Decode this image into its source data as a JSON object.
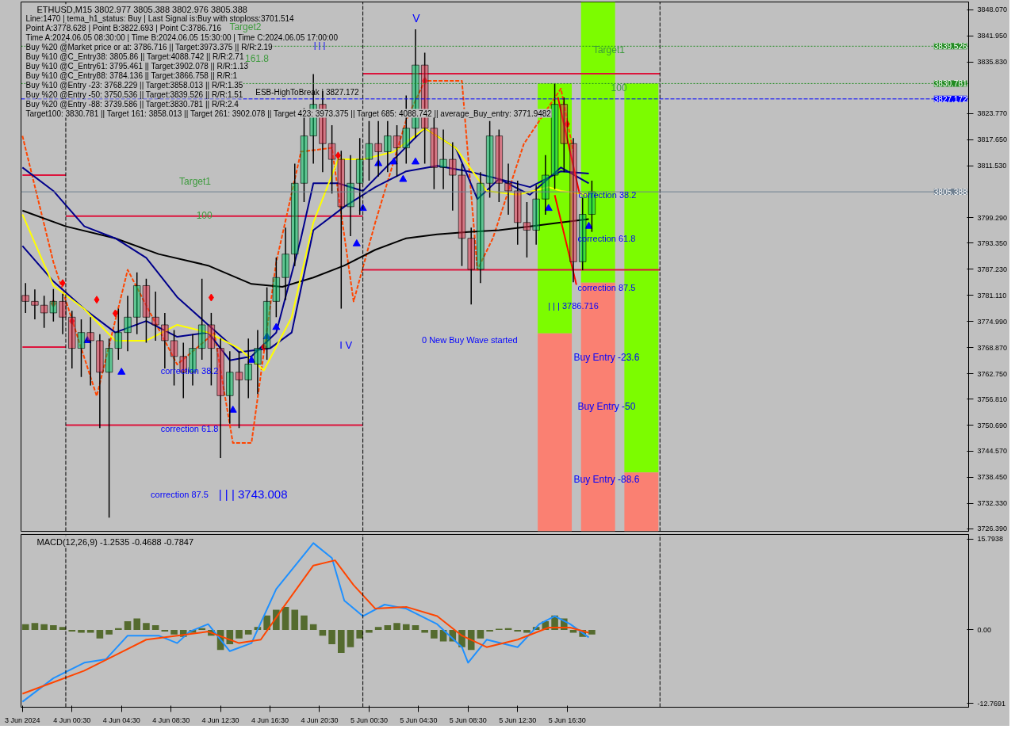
{
  "chart_data": [
    {
      "type": "candlestick",
      "title": "ETHUSD,M15  3802.977 3805.388 3802.976 3805.388",
      "annotations": [
        "Line:1470 | tema_h1_status: Buy | Last Signal is:Buy with stoploss:3701.514",
        "Point A:3778.628 | Point B:3822.693 | Point C:3786.716",
        "Time A:2024.06.05 08:30:00 | Time B:2024.06.05 15:30:00 | Time C:2024.06.05 17:00:00",
        "Buy %20 @Market price or at: 3786.716 || Target:3973.375 || R/R:2.19",
        "Buy %10 @C_Entry38: 3805.86 || Target:4088.742 || R/R:2.71",
        "Buy %10 @C_Entry61: 3795.461 || Target:3902.078 || R/R:1.13",
        "Buy %10 @C_Entry88: 3784.136 || Target:3866.758 || R/R:1",
        "Buy %10 @Entry -23: 3768.229 || Target:3858.013 || R/R:1.35",
        "Buy %20 @Entry -50: 3750.536 || Target:3839.526 || R/R:1.51",
        "Buy %20 @Entry -88: 3739.586 || Target:3830.781 || R/R:2.4",
        "Target100: 3830.781 || Target 161: 3858.013 || Target 261: 3902.078 || Target 423: 3973.375 || Target 685: 4088.742 || average_Buy_entry: 3771.9482",
        "Target2",
        "161.8",
        "V",
        "ESB-HighToBreak | 3827.172",
        "Target1",
        "100",
        "I V",
        "correction 87.5",
        "| | | 3743.008",
        "0 New Buy Wave started",
        "Target1",
        "100",
        "correction 61.8",
        "correction 87.5",
        "Buy Entry -23.6",
        "Buy Entry -50",
        "Buy Entry -88.6",
        {
          "text": "| | |",
          "x": "2024-06-04T20:30",
          "y": 3839.7
        },
        {
          "text": "correction 38.2",
          "x": "2024-06-04T10:00",
          "y": 3763.4
        },
        {
          "text": "correction 61.8",
          "x": "2024-06-04T10:00",
          "y": 3749.8
        },
        {
          "text": "correction 38.2",
          "x": "2024-06-05T19:45",
          "y": 3804.7
        },
        {
          "text": "| | | 3786.716",
          "x": "2024-06-05T17:00",
          "y": 3778.6
        }
      ],
      "x": [
        "2024-06-03T20:45",
        "2024-06-03T21:30",
        "2024-06-03T22:15",
        "2024-06-03T23:00",
        "2024-06-03T23:45",
        "2024-06-04T00:30",
        "2024-06-04T01:15",
        "2024-06-04T02:00",
        "2024-06-04T02:45",
        "2024-06-04T03:30",
        "2024-06-04T04:15",
        "2024-06-04T05:00",
        "2024-06-04T05:45",
        "2024-06-04T06:30",
        "2024-06-04T07:15",
        "2024-06-04T08:00",
        "2024-06-04T08:45",
        "2024-06-04T09:30",
        "2024-06-04T10:15",
        "2024-06-04T11:00",
        "2024-06-04T11:45",
        "2024-06-04T12:30",
        "2024-06-04T13:15",
        "2024-06-04T14:00",
        "2024-06-04T14:45",
        "2024-06-04T15:30",
        "2024-06-04T16:15",
        "2024-06-04T17:00",
        "2024-06-04T17:45",
        "2024-06-04T18:30",
        "2024-06-04T19:15",
        "2024-06-04T20:00",
        "2024-06-04T20:45",
        "2024-06-04T21:30",
        "2024-06-04T22:15",
        "2024-06-04T23:00",
        "2024-06-04T23:45",
        "2024-06-05T00:30",
        "2024-06-05T01:15",
        "2024-06-05T02:00",
        "2024-06-05T02:45",
        "2024-06-05T03:30",
        "2024-06-05T04:15",
        "2024-06-05T05:00",
        "2024-06-05T05:45",
        "2024-06-05T06:30",
        "2024-06-05T07:15",
        "2024-06-05T08:00",
        "2024-06-05T08:45",
        "2024-06-05T09:30",
        "2024-06-05T10:15",
        "2024-06-05T11:00",
        "2024-06-05T11:45",
        "2024-06-05T12:30",
        "2024-06-05T13:15",
        "2024-06-05T14:00",
        "2024-06-05T14:45",
        "2024-06-05T15:30",
        "2024-06-05T16:15",
        "2024-06-05T17:00",
        "2024-06-05T17:45",
        "2024-06-05T18:30"
      ],
      "ohlc": [
        [
          3781.1,
          3784.0,
          3777.0,
          3779.7
        ],
        [
          3779.7,
          3782.5,
          3775.5,
          3778.8
        ],
        [
          3778.8,
          3781.0,
          3773.5,
          3777.0
        ],
        [
          3777.0,
          3782.6,
          3775.0,
          3779.7
        ],
        [
          3779.7,
          3781.5,
          3772.0,
          3776.0
        ],
        [
          3776.0,
          3777.5,
          3764.0,
          3768.7
        ],
        [
          3768.7,
          3775.5,
          3762.0,
          3772.4
        ],
        [
          3772.4,
          3776.0,
          3760.0,
          3770.5
        ],
        [
          3770.5,
          3772.0,
          3750.0,
          3763.1
        ],
        [
          3763.1,
          3771.0,
          3729.0,
          3768.7
        ],
        [
          3768.7,
          3778.0,
          3766.0,
          3772.4
        ],
        [
          3772.4,
          3781.0,
          3768.0,
          3776.0
        ],
        [
          3776.0,
          3786.5,
          3772.0,
          3783.4
        ],
        [
          3783.4,
          3785.0,
          3770.0,
          3776.0
        ],
        [
          3776.0,
          3782.0,
          3770.5,
          3774.2
        ],
        [
          3774.2,
          3777.0,
          3764.0,
          3770.5
        ],
        [
          3770.5,
          3773.0,
          3760.0,
          3766.8
        ],
        [
          3766.8,
          3770.0,
          3757.0,
          3763.1
        ],
        [
          3763.1,
          3772.0,
          3760.0,
          3768.7
        ],
        [
          3768.7,
          3785.0,
          3766.0,
          3774.2
        ],
        [
          3774.2,
          3777.0,
          3760.0,
          3768.7
        ],
        [
          3768.7,
          3771.0,
          3743.0,
          3757.6
        ],
        [
          3757.6,
          3768.0,
          3751.0,
          3763.1
        ],
        [
          3763.1,
          3768.0,
          3750.0,
          3761.3
        ],
        [
          3761.3,
          3771.0,
          3757.0,
          3765.0
        ],
        [
          3765.0,
          3773.0,
          3758.0,
          3768.7
        ],
        [
          3768.7,
          3783.0,
          3766.0,
          3779.7
        ],
        [
          3779.7,
          3790.0,
          3776.0,
          3785.3
        ],
        [
          3785.3,
          3797.0,
          3780.0,
          3790.8
        ],
        [
          3790.8,
          3812.0,
          3788.0,
          3807.4
        ],
        [
          3807.4,
          3825.0,
          3803.0,
          3818.5
        ],
        [
          3818.5,
          3833.0,
          3812.0,
          3825.9
        ],
        [
          3825.9,
          3829.0,
          3810.0,
          3816.7
        ],
        [
          3816.7,
          3821.0,
          3805.0,
          3813.0
        ],
        [
          3813.0,
          3815.0,
          3778.0,
          3801.9
        ],
        [
          3801.9,
          3814.0,
          3795.0,
          3807.4
        ],
        [
          3807.4,
          3818.0,
          3800.0,
          3813.0
        ],
        [
          3813.0,
          3822.0,
          3808.0,
          3816.7
        ],
        [
          3816.7,
          3822.0,
          3809.0,
          3814.8
        ],
        [
          3814.8,
          3822.0,
          3810.0,
          3818.5
        ],
        [
          3818.5,
          3821.0,
          3809.0,
          3815.7
        ],
        [
          3815.7,
          3828.0,
          3812.0,
          3820.3
        ],
        [
          3820.3,
          3843.5,
          3818.0,
          3835.1
        ],
        [
          3835.1,
          3838.0,
          3812.0,
          3820.3
        ],
        [
          3820.3,
          3823.0,
          3806.0,
          3811.1
        ],
        [
          3811.1,
          3820.0,
          3806.0,
          3813.0
        ],
        [
          3813.0,
          3817.0,
          3801.0,
          3809.3
        ],
        [
          3809.3,
          3812.0,
          3788.0,
          3794.5
        ],
        [
          3794.5,
          3797.0,
          3779.0,
          3787.2
        ],
        [
          3787.2,
          3810.0,
          3784.0,
          3807.4
        ],
        [
          3807.4,
          3822.0,
          3804.0,
          3818.5
        ],
        [
          3818.5,
          3820.0,
          3803.0,
          3807.4
        ],
        [
          3807.4,
          3812.0,
          3800.0,
          3805.6
        ],
        [
          3805.6,
          3808.0,
          3793.0,
          3798.2
        ],
        [
          3798.2,
          3803.0,
          3790.0,
          3796.4
        ],
        [
          3796.4,
          3807.0,
          3793.0,
          3803.7
        ],
        [
          3803.7,
          3814.0,
          3800.0,
          3809.3
        ],
        [
          3809.3,
          3830.8,
          3806.0,
          3825.9
        ],
        [
          3825.9,
          3827.5,
          3810.0,
          3816.7
        ],
        [
          3816.7,
          3818.0,
          3784.2,
          3789.0
        ],
        [
          3789.0,
          3804.0,
          3787.0,
          3800.1
        ],
        [
          3800.1,
          3808.0,
          3796.0,
          3805.388
        ]
      ],
      "series": [
        {
          "type": "bar",
          "color": "#7cfc00",
          "x": [
            "2024-06-05T15:30",
            "2024-06-05T19:00",
            "2024-06-05T22:30"
          ],
          "base": [
            3772.2,
            3784.1,
            3739.6
          ],
          "values": [
            58.6,
            65.8,
            91.2
          ]
        },
        {
          "type": "bar",
          "color": "#fa8072",
          "x": [
            "2024-06-05T15:30",
            "2024-06-05T19:00",
            "2024-06-05T22:30"
          ],
          "base": [
            3725.8,
            3725.8,
            3725.8
          ],
          "values": [
            46.4,
            58.3,
            13.8
          ]
        },
        {
          "type": "line",
          "color": "#dc143c",
          "x": [
            "2024-06-05T00:00",
            "2024-06-06T00:00"
          ],
          "values": [
            3833.1,
            3833.1
          ]
        },
        {
          "type": "line",
          "color": "#dc143c",
          "x": [
            "2024-06-03T20:30",
            "2024-06-04T00:00"
          ],
          "values": [
            3809.3,
            3809.3
          ]
        },
        {
          "type": "line",
          "color": "#dc143c",
          "x": [
            "2024-06-04T00:00",
            "2024-06-05T00:00"
          ],
          "values": [
            3799.7,
            3799.7
          ]
        },
        {
          "type": "line",
          "color": "#dc143c",
          "x": [
            "2024-06-05T00:00",
            "2024-06-06T00:00"
          ],
          "values": [
            3787.1,
            3787.1
          ]
        },
        {
          "type": "line",
          "color": "#dc143c",
          "x": [
            "2024-06-03T20:30",
            "2024-06-04T00:00"
          ],
          "values": [
            3769.0,
            3769.0
          ]
        },
        {
          "type": "line",
          "color": "#dc143c",
          "x": [
            "2024-06-04T00:00",
            "2024-06-05T00:00"
          ],
          "values": [
            3750.7,
            3750.7
          ]
        },
        {
          "type": "line",
          "color": "#ff4500",
          "line_style": "dashed",
          "x": [
            "2024-06-03T20:30",
            "2024-06-03T23:00",
            "2024-06-04T02:30",
            "2024-06-04T05:00",
            "2024-06-04T09:00",
            "2024-06-04T12:00",
            "2024-06-04T13:30",
            "2024-06-04T15:00",
            "2024-06-04T17:00",
            "2024-06-04T19:00",
            "2024-06-04T21:30",
            "2024-06-04T23:15",
            "2024-06-05T01:00",
            "2024-06-05T03:30",
            "2024-06-05T05:00",
            "2024-06-05T08:00",
            "2024-06-05T09:15",
            "2024-06-05T10:30",
            "2024-06-05T13:00",
            "2024-06-05T16:00",
            "2024-06-05T17:00"
          ],
          "values": [
            3818.5,
            3788.9,
            3757.5,
            3787.1,
            3764.9,
            3772.3,
            3746.5,
            3746.5,
            3788.9,
            3814.8,
            3815.7,
            3779.7,
            3798.2,
            3822.2,
            3831.4,
            3831.4,
            3787.1,
            3794.5,
            3816.6,
            3829.6,
            3814.8
          ]
        },
        {
          "type": "line",
          "color": "#000000",
          "x": [
            "2024-06-03T20:30",
            "2024-06-04T00:00",
            "2024-06-04T04:00",
            "2024-06-04T07:30",
            "2024-06-04T11:30",
            "2024-06-04T15:00",
            "2024-06-04T17:30",
            "2024-06-04T20:00",
            "2024-06-04T22:30",
            "2024-06-05T01:00",
            "2024-06-05T03:30",
            "2024-06-05T06:00",
            "2024-06-05T08:30",
            "2024-06-05T11:00",
            "2024-06-05T13:30",
            "2024-06-05T16:00",
            "2024-06-05T18:15"
          ],
          "values": [
            3801.0,
            3797.3,
            3794.5,
            3790.8,
            3788.1,
            3783.8,
            3783.1,
            3785.3,
            3788.1,
            3791.8,
            3794.5,
            3795.4,
            3796.0,
            3796.4,
            3797.3,
            3798.2,
            3799.0
          ]
        },
        {
          "type": "line",
          "color": "#00008b",
          "x": [
            "2024-06-03T20:30",
            "2024-06-03T23:00",
            "2024-06-04T01:30",
            "2024-06-04T04:00",
            "2024-06-04T06:30",
            "2024-06-04T09:00",
            "2024-06-04T11:30",
            "2024-06-04T14:00",
            "2024-06-04T16:30",
            "2024-06-04T18:15",
            "2024-06-04T20:00",
            "2024-06-04T22:30",
            "2024-06-05T01:00",
            "2024-06-05T03:30",
            "2024-06-05T06:00",
            "2024-06-05T08:30",
            "2024-06-05T11:00",
            "2024-06-05T13:30",
            "2024-06-05T16:00",
            "2024-06-05T18:15"
          ],
          "values": [
            3811.1,
            3805.6,
            3797.3,
            3794.5,
            3789.9,
            3780.7,
            3774.2,
            3767.8,
            3768.7,
            3772.4,
            3796.4,
            3801.9,
            3806.5,
            3810.2,
            3811.5,
            3810.2,
            3808.4,
            3806.5,
            3810.2,
            3809.7
          ]
        },
        {
          "type": "line",
          "color": "#00008b",
          "x": [
            "2024-06-03T20:30",
            "2024-06-03T23:00",
            "2024-06-04T01:30",
            "2024-06-04T04:00",
            "2024-06-04T06:30",
            "2024-06-04T09:00",
            "2024-06-04T11:30",
            "2024-06-04T13:15",
            "2024-06-04T15:00",
            "2024-06-04T17:00",
            "2024-06-04T19:00",
            "2024-06-04T20:00",
            "2024-06-04T22:00",
            "2024-06-05T00:00",
            "2024-06-05T02:30",
            "2024-06-05T05:00",
            "2024-06-05T07:30",
            "2024-06-05T09:15",
            "2024-06-05T11:00",
            "2024-06-05T13:30",
            "2024-06-05T16:00",
            "2024-06-05T18:15"
          ],
          "values": [
            3792.7,
            3784.4,
            3777.9,
            3772.4,
            3775.1,
            3771.4,
            3772.4,
            3765.9,
            3766.8,
            3772.4,
            3794.5,
            3807.4,
            3807.4,
            3805.6,
            3813.0,
            3820.3,
            3815.7,
            3803.7,
            3808.4,
            3804.7,
            3811.1,
            3807.4
          ]
        },
        {
          "type": "line",
          "color": "#ffff00",
          "x": [
            "2024-06-03T20:30",
            "2024-06-03T23:00",
            "2024-06-04T01:30",
            "2024-06-04T04:00",
            "2024-06-04T06:30",
            "2024-06-04T09:00",
            "2024-06-04T11:30",
            "2024-06-04T14:00",
            "2024-06-04T16:00",
            "2024-06-04T18:15",
            "2024-06-04T20:00",
            "2024-06-04T22:00",
            "2024-06-05T00:00",
            "2024-06-05T02:30",
            "2024-06-05T05:00",
            "2024-06-05T07:30",
            "2024-06-05T10:00",
            "2024-06-05T12:30",
            "2024-06-05T15:00",
            "2024-06-05T16:00",
            "2024-06-05T18:15"
          ],
          "values": [
            3800.1,
            3783.4,
            3777.9,
            3770.5,
            3770.5,
            3774.2,
            3772.4,
            3768.7,
            3763.5,
            3776.0,
            3798.2,
            3813.0,
            3813.0,
            3814.8,
            3820.3,
            3815.7,
            3805.6,
            3804.7,
            3806.5,
            3805.6,
            3804.7
          ]
        },
        {
          "type": "line",
          "color": "#ff0000",
          "x": [
            "2024-06-05T15:45",
            "2024-06-05T17:30"
          ],
          "values": [
            3827.6,
            3805.0
          ]
        },
        {
          "type": "line",
          "color": "#ff0000",
          "x": [
            "2024-06-05T15:30",
            "2024-06-05T17:15"
          ],
          "values": [
            3804.6,
            3783.6
          ]
        },
        {
          "type": "scatter",
          "marker": "diamond",
          "color": "#ff0000",
          "x": [
            "2024-06-03T23:00",
            "2024-06-03T23:45",
            "2024-06-04T00:30",
            "2024-06-04T02:30",
            "2024-06-04T04:00",
            "2024-06-04T11:45",
            "2024-06-04T16:00",
            "2024-06-04T22:00",
            "2024-06-05T05:00",
            "2024-06-05T16:30"
          ],
          "values": [
            3779.2,
            3784.0,
            3775.1,
            3780.1,
            3776.9,
            3780.6,
            3769.0,
            3813.9,
            3831.4,
            3821.3
          ]
        },
        {
          "type": "scatter",
          "marker": "triangle",
          "color": "#0000ff",
          "x": [
            "2024-06-04T01:45",
            "2024-06-04T04:30",
            "2024-06-04T13:30",
            "2024-06-04T15:00",
            "2024-06-04T16:15",
            "2024-06-04T17:00",
            "2024-06-04T23:30",
            "2024-06-05T00:00",
            "2024-06-05T01:15",
            "2024-06-05T02:30",
            "2024-06-05T03:15",
            "2024-06-05T04:15",
            "2024-06-05T15:00",
            "2024-06-05T18:15"
          ],
          "values": [
            3770.5,
            3763.1,
            3754.2,
            3765.9,
            3771.4,
            3773.6,
            3793.2,
            3801.5,
            3812.0,
            3812.4,
            3808.3,
            3812.4,
            3801.5,
            3797.3
          ]
        }
      ],
      "ref_lines": [
        {
          "axis": "x",
          "value": "2024-06-04T00:00",
          "color": "#000000",
          "line_style": "dashed"
        },
        {
          "axis": "x",
          "value": "2024-06-05T00:00",
          "color": "#000000",
          "line_style": "dashed"
        },
        {
          "axis": "x",
          "value": "2024-06-06T00:00",
          "color": "#000000",
          "line_style": "dashed"
        },
        {
          "axis": "y",
          "value": 3839.526,
          "label": "3839.526",
          "color": "#228b22",
          "line_style": "dotted"
        },
        {
          "axis": "y",
          "value": 3830.781,
          "label": "3830.781",
          "color": "#228b22",
          "line_style": "dotted"
        },
        {
          "axis": "y",
          "value": 3827.172,
          "label": "3827.172",
          "color": "#0000ff",
          "line_style": "dashed"
        },
        {
          "axis": "y",
          "value": 3805.388,
          "label": "3805.388",
          "color": "#708090",
          "line_style": "solid"
        }
      ],
      "xlim": [
        "2024-06-03T20:23",
        "2024-06-07T00:56"
      ],
      "ylim": [
        3725.8,
        3849.9
      ],
      "yticks": [
        {
          "value": 3848.07,
          "label": "3848.070"
        },
        {
          "value": 3841.95,
          "label": "3841.950"
        },
        {
          "value": 3835.83,
          "label": "3835.830"
        },
        {
          "value": 3823.77,
          "label": "3823.770"
        },
        {
          "value": 3817.65,
          "label": "3817.650"
        },
        {
          "value": 3811.53,
          "label": "3811.530"
        },
        {
          "value": 3799.29,
          "label": "3799.290"
        },
        {
          "value": 3793.35,
          "label": "3793.350"
        },
        {
          "value": 3787.23,
          "label": "3787.230"
        },
        {
          "value": 3781.11,
          "label": "3781.110"
        },
        {
          "value": 3774.99,
          "label": "3774.990"
        },
        {
          "value": 3768.87,
          "label": "3768.870"
        },
        {
          "value": 3762.75,
          "label": "3762.750"
        },
        {
          "value": 3756.81,
          "label": "3756.810"
        },
        {
          "value": 3750.69,
          "label": "3750.690"
        },
        {
          "value": 3744.57,
          "label": "3744.570"
        },
        {
          "value": 3738.45,
          "label": "3738.450"
        },
        {
          "value": 3732.33,
          "label": "3732.330"
        },
        {
          "value": 3726.39,
          "label": "3726.390"
        }
      ],
      "tick_labels": "y"
    },
    {
      "type": "bar",
      "title": "MACD(12,26,9) -1.2535 -0.4688 -0.7847",
      "color": "#556b2f",
      "x": [
        "2024-06-03T20:45",
        "2024-06-03T21:30",
        "2024-06-03T22:15",
        "2024-06-03T23:00",
        "2024-06-03T23:45",
        "2024-06-04T00:30",
        "2024-06-04T01:15",
        "2024-06-04T02:00",
        "2024-06-04T02:45",
        "2024-06-04T03:30",
        "2024-06-04T04:15",
        "2024-06-04T05:00",
        "2024-06-04T05:45",
        "2024-06-04T06:30",
        "2024-06-04T07:15",
        "2024-06-04T08:00",
        "2024-06-04T08:45",
        "2024-06-04T09:30",
        "2024-06-04T10:15",
        "2024-06-04T11:00",
        "2024-06-04T11:45",
        "2024-06-04T12:30",
        "2024-06-04T13:15",
        "2024-06-04T14:00",
        "2024-06-04T14:45",
        "2024-06-04T15:30",
        "2024-06-04T16:15",
        "2024-06-04T17:00",
        "2024-06-04T17:45",
        "2024-06-04T18:30",
        "2024-06-04T19:15",
        "2024-06-04T20:00",
        "2024-06-04T20:45",
        "2024-06-04T21:30",
        "2024-06-04T22:15",
        "2024-06-04T23:00",
        "2024-06-04T23:45",
        "2024-06-05T00:30",
        "2024-06-05T01:15",
        "2024-06-05T02:00",
        "2024-06-05T02:45",
        "2024-06-05T03:30",
        "2024-06-05T04:15",
        "2024-06-05T05:00",
        "2024-06-05T05:45",
        "2024-06-05T06:30",
        "2024-06-05T07:15",
        "2024-06-05T08:00",
        "2024-06-05T08:45",
        "2024-06-05T09:30",
        "2024-06-05T10:15",
        "2024-06-05T11:00",
        "2024-06-05T11:45",
        "2024-06-05T12:30",
        "2024-06-05T13:15",
        "2024-06-05T14:00",
        "2024-06-05T14:45",
        "2024-06-05T15:30",
        "2024-06-05T16:15",
        "2024-06-05T17:00",
        "2024-06-05T17:45",
        "2024-06-05T18:30"
      ],
      "values": [
        1.0,
        1.2,
        1.0,
        0.8,
        0.5,
        -0.3,
        -0.5,
        -0.5,
        -1.5,
        -0.8,
        0.3,
        1.5,
        2.0,
        1.2,
        0.8,
        -0.3,
        -0.8,
        -1.2,
        -0.5,
        0.3,
        -1.0,
        -3.5,
        -2.5,
        -1.5,
        -0.8,
        0.5,
        2.5,
        3.5,
        4.0,
        3.5,
        2.5,
        1.0,
        -1.0,
        -2.5,
        -4.0,
        -3.0,
        -1.5,
        -0.5,
        0.5,
        0.8,
        1.2,
        1.0,
        0.8,
        -0.5,
        -1.5,
        -2.0,
        -2.0,
        -3.0,
        -3.5,
        -1.5,
        -0.3,
        0.2,
        0.3,
        -0.3,
        -0.5,
        0.5,
        1.5,
        2.5,
        2.0,
        -0.5,
        -1.2,
        -0.8
      ],
      "series": [
        {
          "type": "line",
          "color": "#1e90ff",
          "x": [
            "2024-06-03T20:30",
            "2024-06-03T23:00",
            "2024-06-04T01:30",
            "2024-06-04T03:15",
            "2024-06-04T05:00",
            "2024-06-04T07:30",
            "2024-06-04T09:00",
            "2024-06-04T10:00",
            "2024-06-04T11:30",
            "2024-06-04T13:15",
            "2024-06-04T15:00",
            "2024-06-04T17:00",
            "2024-06-04T20:00",
            "2024-06-04T21:30",
            "2024-06-04T22:30",
            "2024-06-05T00:00",
            "2024-06-05T01:45",
            "2024-06-05T03:30",
            "2024-06-05T06:00",
            "2024-06-05T08:00",
            "2024-06-05T08:30",
            "2024-06-05T10:00",
            "2024-06-05T12:30",
            "2024-06-05T14:15",
            "2024-06-05T15:30",
            "2024-06-05T16:45",
            "2024-06-05T18:15"
          ],
          "values": [
            -12.5,
            -8.4,
            -5.7,
            -5.1,
            -1.0,
            -1.0,
            -2.3,
            -0.3,
            1.0,
            -3.7,
            -2.3,
            7.1,
            15.1,
            12.5,
            5.1,
            2.4,
            4.4,
            3.7,
            1.0,
            -3.0,
            -5.7,
            -1.7,
            -3.0,
            1.0,
            2.4,
            1.0,
            -1.3
          ]
        },
        {
          "type": "line",
          "color": "#ff4500",
          "x": [
            "2024-06-03T20:30",
            "2024-06-03T23:00",
            "2024-06-04T01:30",
            "2024-06-04T04:00",
            "2024-06-04T06:30",
            "2024-06-04T09:00",
            "2024-06-04T11:30",
            "2024-06-04T14:00",
            "2024-06-04T15:45",
            "2024-06-04T17:30",
            "2024-06-04T20:00",
            "2024-06-04T21:45",
            "2024-06-04T23:15",
            "2024-06-05T01:00",
            "2024-06-05T03:30",
            "2024-06-05T06:00",
            "2024-06-05T08:00",
            "2024-06-05T10:00",
            "2024-06-05T12:30",
            "2024-06-05T15:00",
            "2024-06-05T16:45",
            "2024-06-05T18:15"
          ],
          "values": [
            -11.1,
            -9.1,
            -7.1,
            -4.4,
            -1.7,
            -1.0,
            -0.3,
            -2.3,
            -1.7,
            3.7,
            11.2,
            12.1,
            7.8,
            3.7,
            4.0,
            2.4,
            -1.0,
            -3.0,
            -1.7,
            0.4,
            0.4,
            -0.5
          ]
        }
      ],
      "ref_lines": [
        {
          "axis": "x",
          "value": "2024-06-04T00:00",
          "color": "#000000",
          "line_style": "dashed"
        },
        {
          "axis": "x",
          "value": "2024-06-05T00:00",
          "color": "#000000",
          "line_style": "dashed"
        },
        {
          "axis": "x",
          "value": "2024-06-06T00:00",
          "color": "#000000",
          "line_style": "dashed"
        }
      ],
      "xlim": [
        "2024-06-03T20:23",
        "2024-06-07T00:56"
      ],
      "xticks": [
        {
          "value": "2024-06-03T20:30",
          "label": "3 Jun 2024"
        },
        {
          "value": "2024-06-04T00:30",
          "label": "4 Jun 00:30"
        },
        {
          "value": "2024-06-04T04:30",
          "label": "4 Jun 04:30"
        },
        {
          "value": "2024-06-04T08:30",
          "label": "4 Jun 08:30"
        },
        {
          "value": "2024-06-04T12:30",
          "label": "4 Jun 12:30"
        },
        {
          "value": "2024-06-04T16:30",
          "label": "4 Jun 16:30"
        },
        {
          "value": "2024-06-04T20:30",
          "label": "4 Jun 20:30"
        },
        {
          "value": "2024-06-05T00:30",
          "label": "5 Jun 00:30"
        },
        {
          "value": "2024-06-05T04:30",
          "label": "5 Jun 04:30"
        },
        {
          "value": "2024-06-05T08:30",
          "label": "5 Jun 08:30"
        },
        {
          "value": "2024-06-05T12:30",
          "label": "5 Jun 12:30"
        },
        {
          "value": "2024-06-05T16:30",
          "label": "5 Jun 16:30"
        }
      ],
      "ylim": [
        -13.45,
        16.6
      ],
      "yticks": [
        {
          "value": 15.7938,
          "label": "15.7938"
        },
        {
          "value": 0,
          "label": "0.00"
        },
        {
          "value": -12.7691,
          "label": "-12.7691"
        }
      ]
    }
  ]
}
